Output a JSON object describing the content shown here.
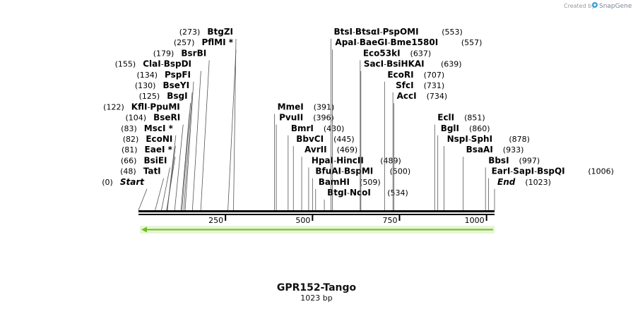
{
  "header": {
    "credit": "Created by",
    "brand": "SnapGene"
  },
  "map": {
    "title": "GPR152-Tango",
    "length_label": "1023 bp",
    "length_bp": 1023,
    "axis_ticks": [
      {
        "bp": 250,
        "label": "250"
      },
      {
        "bp": 500,
        "label": "500"
      },
      {
        "bp": 750,
        "label": "750"
      },
      {
        "bp": 1000,
        "label": "1000"
      }
    ],
    "feature": {
      "name": "insert-arrow",
      "start": 0,
      "end": 1023,
      "direction": "reverse",
      "color": "#6fbf1f"
    },
    "sites": [
      {
        "parts": [
          "BtgZI"
        ],
        "pos_label": "(273)",
        "pos": 273,
        "side": "left",
        "row": 0
      },
      {
        "parts": [
          "PflMI *"
        ],
        "pos_label": "(257)",
        "pos": 257,
        "side": "left",
        "row": 1
      },
      {
        "parts": [
          "BsrBI"
        ],
        "pos_label": "(179)",
        "pos": 179,
        "side": "left",
        "row": 2
      },
      {
        "parts": [
          "ClaI",
          "BspDI"
        ],
        "pos_label": "(155)",
        "pos": 155,
        "side": "left",
        "row": 3
      },
      {
        "parts": [
          "PspFI"
        ],
        "pos_label": "(134)",
        "pos": 134,
        "side": "left",
        "row": 4
      },
      {
        "parts": [
          "BseYI"
        ],
        "pos_label": "(130)",
        "pos": 130,
        "side": "left",
        "row": 5
      },
      {
        "parts": [
          "BsgI"
        ],
        "pos_label": "(125)",
        "pos": 125,
        "side": "left",
        "row": 6
      },
      {
        "parts": [
          "KflI",
          "PpuMI"
        ],
        "pos_label": "(122)",
        "pos": 122,
        "side": "left",
        "row": 7
      },
      {
        "parts": [
          "BseRI"
        ],
        "pos_label": "(104)",
        "pos": 104,
        "side": "left",
        "row": 8
      },
      {
        "parts": [
          "MscI *"
        ],
        "pos_label": "(83)",
        "pos": 83,
        "side": "left",
        "row": 9
      },
      {
        "parts": [
          "EcoNI"
        ],
        "pos_label": "(82)",
        "pos": 82,
        "side": "left",
        "row": 10
      },
      {
        "parts": [
          "EaeI *"
        ],
        "pos_label": "(81)",
        "pos": 81,
        "side": "left",
        "row": 11
      },
      {
        "parts": [
          "BsiEI"
        ],
        "pos_label": "(66)",
        "pos": 66,
        "side": "left",
        "row": 12
      },
      {
        "parts": [
          "TatI"
        ],
        "pos_label": "(48)",
        "pos": 48,
        "side": "left",
        "row": 13
      },
      {
        "parts": [
          "Start"
        ],
        "pos_label": "(0)",
        "pos": 0,
        "side": "left",
        "row": 14,
        "italic": true
      },
      {
        "parts": [
          "MmeI"
        ],
        "pos_label": "(391)",
        "pos": 391,
        "side": "right",
        "row": 7
      },
      {
        "parts": [
          "PvuII"
        ],
        "pos_label": "(396)",
        "pos": 396,
        "side": "right",
        "row": 8
      },
      {
        "parts": [
          "BmrI"
        ],
        "pos_label": "(430)",
        "pos": 430,
        "side": "right",
        "row": 9
      },
      {
        "parts": [
          "BbvCI"
        ],
        "pos_label": "(445)",
        "pos": 445,
        "side": "right",
        "row": 10
      },
      {
        "parts": [
          "AvrII"
        ],
        "pos_label": "(469)",
        "pos": 469,
        "side": "right",
        "row": 11
      },
      {
        "parts": [
          "HpaI",
          "HincII"
        ],
        "pos_label": "(489)",
        "pos": 489,
        "side": "right",
        "row": 12
      },
      {
        "parts": [
          "BfuAI",
          "BspMI"
        ],
        "pos_label": "(500)",
        "pos": 500,
        "side": "right",
        "row": 13
      },
      {
        "parts": [
          "BamHI"
        ],
        "pos_label": "(509)",
        "pos": 509,
        "side": "right",
        "row": 14
      },
      {
        "parts": [
          "BtgI",
          "NcoI"
        ],
        "pos_label": "(534)",
        "pos": 534,
        "side": "right",
        "row": 15
      },
      {
        "parts": [
          "BtsI",
          "BtsαI",
          "PspOMI"
        ],
        "pos_label": "(553)",
        "pos": 553,
        "side": "right",
        "row": 0
      },
      {
        "parts": [
          "ApaI",
          "BaeGI",
          "Bme1580I"
        ],
        "pos_label": "(557)",
        "pos": 557,
        "side": "right",
        "row": 1
      },
      {
        "parts": [
          "Eco53kI"
        ],
        "pos_label": "(637)",
        "pos": 637,
        "side": "right",
        "row": 2
      },
      {
        "parts": [
          "SacI",
          "BsiHKAI"
        ],
        "pos_label": "(639)",
        "pos": 639,
        "side": "right",
        "row": 3
      },
      {
        "parts": [
          "EcoRI"
        ],
        "pos_label": "(707)",
        "pos": 707,
        "side": "right",
        "row": 4
      },
      {
        "parts": [
          "SfcI"
        ],
        "pos_label": "(731)",
        "pos": 731,
        "side": "right",
        "row": 5
      },
      {
        "parts": [
          "AccI"
        ],
        "pos_label": "(734)",
        "pos": 734,
        "side": "right",
        "row": 6
      },
      {
        "parts": [
          "EclI"
        ],
        "pos_label": "(851)",
        "pos": 851,
        "side": "right",
        "row": 8
      },
      {
        "parts": [
          "BglI"
        ],
        "pos_label": "(860)",
        "pos": 860,
        "side": "right",
        "row": 9
      },
      {
        "parts": [
          "NspI",
          "SphI"
        ],
        "pos_label": "(878)",
        "pos": 878,
        "side": "right",
        "row": 10
      },
      {
        "parts": [
          "BsaAI"
        ],
        "pos_label": "(933)",
        "pos": 933,
        "side": "right",
        "row": 11
      },
      {
        "parts": [
          "BbsI"
        ],
        "pos_label": "(997)",
        "pos": 997,
        "side": "right",
        "row": 12
      },
      {
        "parts": [
          "EarI",
          "SapI",
          "BspQI"
        ],
        "pos_label": "(1006)",
        "pos": 1006,
        "side": "right",
        "row": 13
      },
      {
        "parts": [
          "End"
        ],
        "pos_label": "(1023)",
        "pos": 1023,
        "side": "right",
        "row": 14,
        "italic": true
      }
    ]
  }
}
